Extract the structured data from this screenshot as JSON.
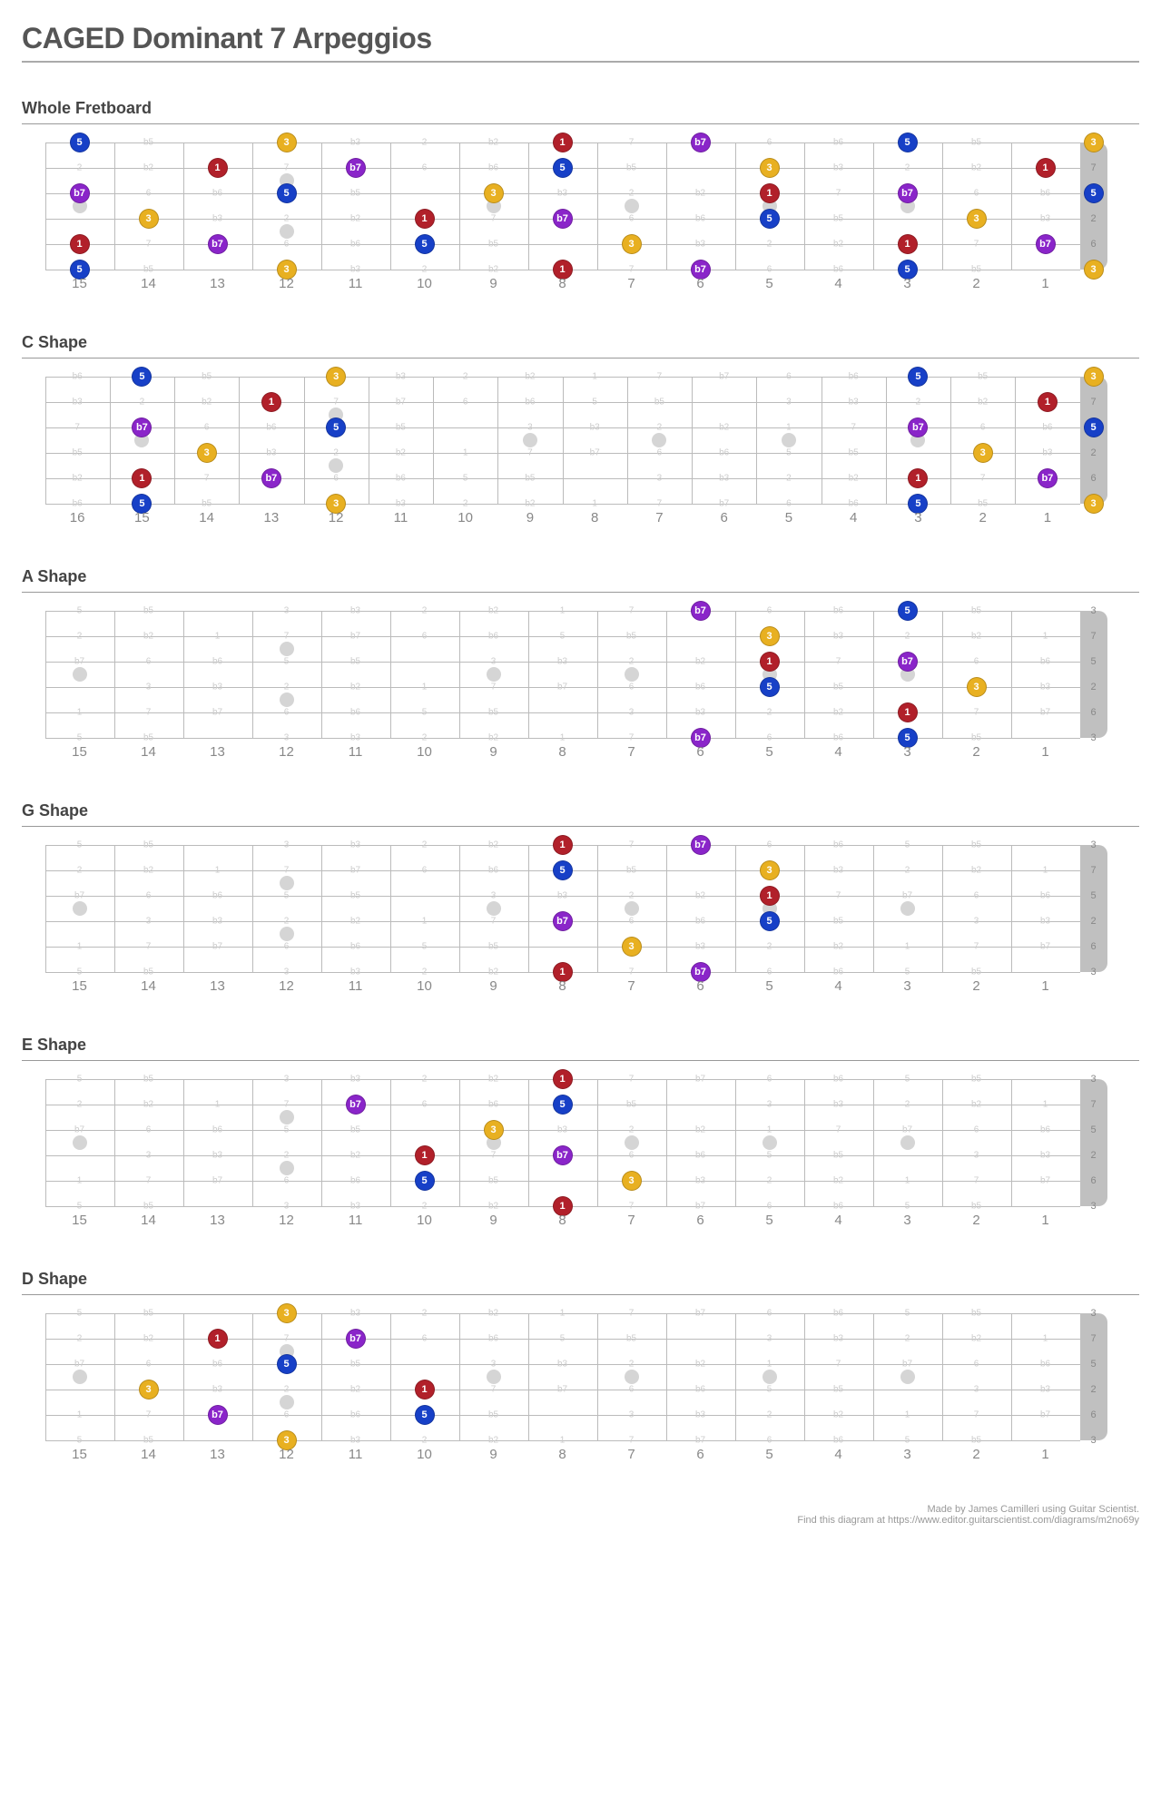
{
  "title": "CAGED Dominant 7 Arpeggios",
  "footer_line1": "Made by James Camilleri using Guitar Scientist.",
  "footer_line2": "Find this diagram at https://www.editor.guitarscientist.com/diagrams/m2no69y",
  "layout": {
    "board_width": 1140,
    "board_height": 140,
    "nut_width": 30,
    "string_gap": 28,
    "marker_color": "#d5d5d5",
    "line_color": "#bbbbbb",
    "ghost_color": "#cccccc",
    "nut_color": "#c0c0c0",
    "nut_label_color": "#888888"
  },
  "colors": {
    "1": "#b1202a",
    "3": "#e8b021",
    "5": "#1740c7",
    "b7": "#8a25c9"
  },
  "ghost_labels": [
    "5",
    "b5",
    null,
    "3",
    "b3",
    "2",
    "b2",
    "1",
    "7",
    "b7",
    "6",
    "b6",
    "5",
    "b5",
    null,
    "3",
    "b3",
    "2",
    "b2",
    "1",
    "7",
    "b7",
    "6",
    "b6",
    "5",
    "b5",
    null,
    "3",
    "b3",
    "2",
    "b2",
    "1"
  ],
  "string_ghost_offset": [
    0,
    -5,
    -9,
    -14,
    -19,
    -24
  ],
  "open_strings": [
    "3",
    "7",
    "5",
    "2",
    "6",
    "3"
  ],
  "inlay_frets_single": [
    3,
    5,
    7,
    9,
    15
  ],
  "inlay_frets_double": [
    12
  ],
  "sections": [
    {
      "title": "Whole Fretboard",
      "frets": 15,
      "notes": [
        {
          "s": 1,
          "f": 0,
          "t": "3"
        },
        {
          "s": 1,
          "f": 3,
          "t": "5"
        },
        {
          "s": 1,
          "f": 6,
          "t": "b7"
        },
        {
          "s": 1,
          "f": 8,
          "t": "1"
        },
        {
          "s": 1,
          "f": 12,
          "t": "3"
        },
        {
          "s": 1,
          "f": 15,
          "t": "5"
        },
        {
          "s": 2,
          "f": 1,
          "t": "1"
        },
        {
          "s": 2,
          "f": 5,
          "t": "3"
        },
        {
          "s": 2,
          "f": 8,
          "t": "5"
        },
        {
          "s": 2,
          "f": 11,
          "t": "b7"
        },
        {
          "s": 2,
          "f": 13,
          "t": "1"
        },
        {
          "s": 3,
          "f": 0,
          "t": "5"
        },
        {
          "s": 3,
          "f": 3,
          "t": "b7"
        },
        {
          "s": 3,
          "f": 5,
          "t": "1"
        },
        {
          "s": 3,
          "f": 9,
          "t": "3"
        },
        {
          "s": 3,
          "f": 12,
          "t": "5"
        },
        {
          "s": 3,
          "f": 15,
          "t": "b7"
        },
        {
          "s": 4,
          "f": 2,
          "t": "3"
        },
        {
          "s": 4,
          "f": 5,
          "t": "5"
        },
        {
          "s": 4,
          "f": 8,
          "t": "b7"
        },
        {
          "s": 4,
          "f": 10,
          "t": "1"
        },
        {
          "s": 4,
          "f": 14,
          "t": "3"
        },
        {
          "s": 5,
          "f": 1,
          "t": "b7"
        },
        {
          "s": 5,
          "f": 3,
          "t": "1"
        },
        {
          "s": 5,
          "f": 7,
          "t": "3"
        },
        {
          "s": 5,
          "f": 10,
          "t": "5"
        },
        {
          "s": 5,
          "f": 13,
          "t": "b7"
        },
        {
          "s": 5,
          "f": 15,
          "t": "1"
        },
        {
          "s": 6,
          "f": 0,
          "t": "3"
        },
        {
          "s": 6,
          "f": 3,
          "t": "5"
        },
        {
          "s": 6,
          "f": 6,
          "t": "b7"
        },
        {
          "s": 6,
          "f": 8,
          "t": "1"
        },
        {
          "s": 6,
          "f": 12,
          "t": "3"
        },
        {
          "s": 6,
          "f": 15,
          "t": "5"
        }
      ]
    },
    {
      "title": "C Shape",
      "frets": 16,
      "notes": [
        {
          "s": 1,
          "f": 0,
          "t": "3"
        },
        {
          "s": 1,
          "f": 3,
          "t": "5"
        },
        {
          "s": 1,
          "f": 12,
          "t": "3"
        },
        {
          "s": 1,
          "f": 15,
          "t": "5"
        },
        {
          "s": 2,
          "f": 1,
          "t": "1"
        },
        {
          "s": 2,
          "f": 13,
          "t": "1"
        },
        {
          "s": 3,
          "f": 0,
          "t": "5"
        },
        {
          "s": 3,
          "f": 3,
          "t": "b7"
        },
        {
          "s": 3,
          "f": 12,
          "t": "5"
        },
        {
          "s": 3,
          "f": 15,
          "t": "b7"
        },
        {
          "s": 4,
          "f": 2,
          "t": "3"
        },
        {
          "s": 4,
          "f": 14,
          "t": "3"
        },
        {
          "s": 5,
          "f": 1,
          "t": "b7"
        },
        {
          "s": 5,
          "f": 3,
          "t": "1"
        },
        {
          "s": 5,
          "f": 13,
          "t": "b7"
        },
        {
          "s": 5,
          "f": 15,
          "t": "1"
        },
        {
          "s": 6,
          "f": 0,
          "t": "3"
        },
        {
          "s": 6,
          "f": 3,
          "t": "5"
        },
        {
          "s": 6,
          "f": 12,
          "t": "3"
        },
        {
          "s": 6,
          "f": 15,
          "t": "5"
        }
      ]
    },
    {
      "title": "A Shape",
      "frets": 15,
      "notes": [
        {
          "s": 1,
          "f": 3,
          "t": "5"
        },
        {
          "s": 1,
          "f": 6,
          "t": "b7"
        },
        {
          "s": 2,
          "f": 5,
          "t": "3"
        },
        {
          "s": 3,
          "f": 3,
          "t": "b7"
        },
        {
          "s": 3,
          "f": 5,
          "t": "1"
        },
        {
          "s": 4,
          "f": 2,
          "t": "3"
        },
        {
          "s": 4,
          "f": 5,
          "t": "5"
        },
        {
          "s": 5,
          "f": 3,
          "t": "1"
        },
        {
          "s": 6,
          "f": 3,
          "t": "5"
        },
        {
          "s": 6,
          "f": 6,
          "t": "b7"
        }
      ]
    },
    {
      "title": "G Shape",
      "frets": 15,
      "notes": [
        {
          "s": 1,
          "f": 6,
          "t": "b7"
        },
        {
          "s": 1,
          "f": 8,
          "t": "1"
        },
        {
          "s": 2,
          "f": 5,
          "t": "3"
        },
        {
          "s": 2,
          "f": 8,
          "t": "5"
        },
        {
          "s": 3,
          "f": 5,
          "t": "1"
        },
        {
          "s": 4,
          "f": 5,
          "t": "5"
        },
        {
          "s": 4,
          "f": 8,
          "t": "b7"
        },
        {
          "s": 5,
          "f": 7,
          "t": "3"
        },
        {
          "s": 6,
          "f": 6,
          "t": "b7"
        },
        {
          "s": 6,
          "f": 8,
          "t": "1"
        }
      ]
    },
    {
      "title": "E Shape",
      "frets": 15,
      "notes": [
        {
          "s": 1,
          "f": 8,
          "t": "1"
        },
        {
          "s": 2,
          "f": 8,
          "t": "5"
        },
        {
          "s": 2,
          "f": 11,
          "t": "b7"
        },
        {
          "s": 3,
          "f": 9,
          "t": "3"
        },
        {
          "s": 4,
          "f": 8,
          "t": "b7"
        },
        {
          "s": 4,
          "f": 10,
          "t": "1"
        },
        {
          "s": 5,
          "f": 7,
          "t": "3"
        },
        {
          "s": 5,
          "f": 10,
          "t": "5"
        },
        {
          "s": 6,
          "f": 8,
          "t": "1"
        }
      ]
    },
    {
      "title": "D Shape",
      "frets": 15,
      "notes": [
        {
          "s": 1,
          "f": 12,
          "t": "3"
        },
        {
          "s": 2,
          "f": 11,
          "t": "b7"
        },
        {
          "s": 2,
          "f": 13,
          "t": "1"
        },
        {
          "s": 3,
          "f": 12,
          "t": "5"
        },
        {
          "s": 4,
          "f": 10,
          "t": "1"
        },
        {
          "s": 4,
          "f": 14,
          "t": "3"
        },
        {
          "s": 5,
          "f": 10,
          "t": "5"
        },
        {
          "s": 5,
          "f": 13,
          "t": "b7"
        },
        {
          "s": 6,
          "f": 12,
          "t": "3"
        }
      ]
    }
  ]
}
